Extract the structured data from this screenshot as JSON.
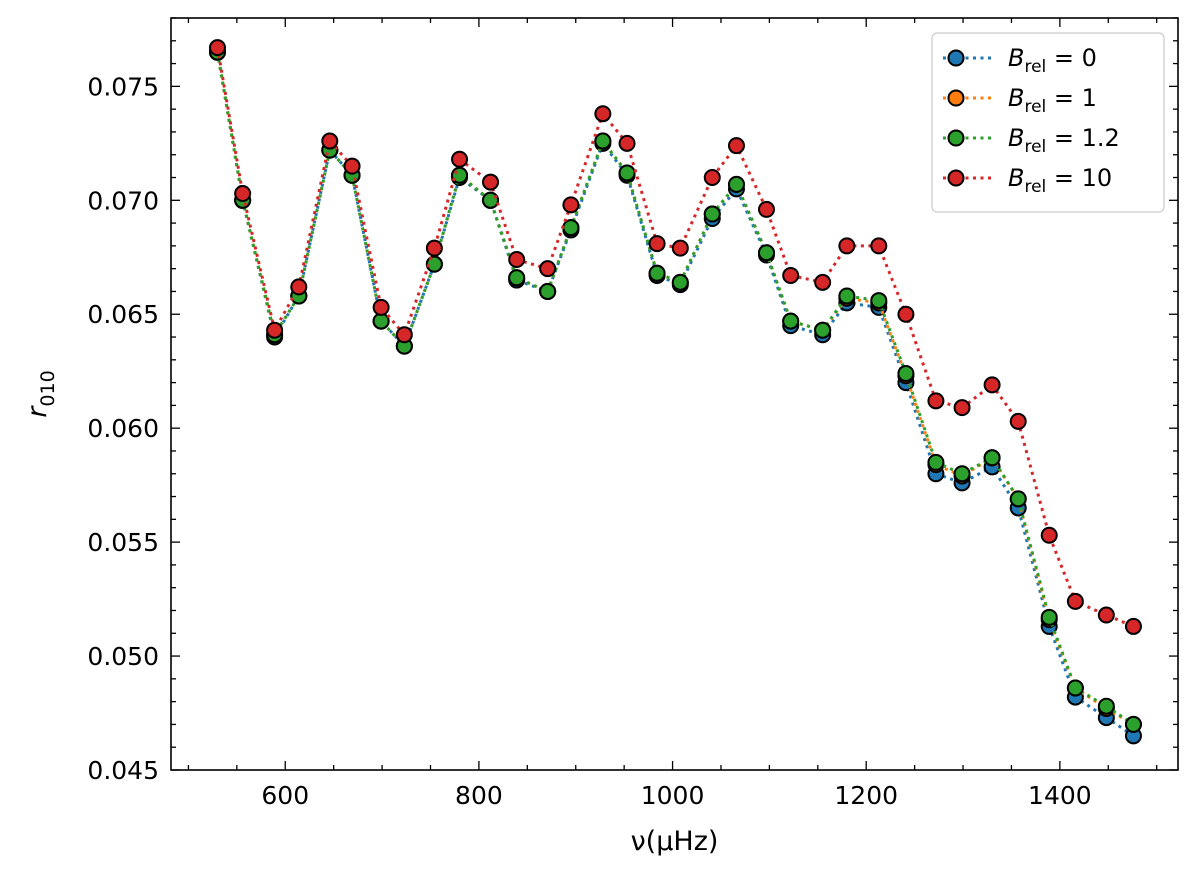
{
  "chart_data": {
    "type": "line",
    "xlabel": "ν(μHz)",
    "ylabel": "r010",
    "xlim": [
      482,
      1522
    ],
    "ylim": [
      0.045,
      0.078
    ],
    "x_ticks": [
      600,
      800,
      1000,
      1200,
      1400
    ],
    "x_tick_labels": [
      "600",
      "800",
      "1000",
      "1200",
      "1400"
    ],
    "y_ticks": [
      0.045,
      0.05,
      0.055,
      0.06,
      0.065,
      0.07,
      0.075
    ],
    "y_tick_labels": [
      "0.045",
      "0.050",
      "0.055",
      "0.060",
      "0.065",
      "0.070",
      "0.075"
    ],
    "grid": false,
    "legend_position": "top-right",
    "x": [
      530,
      556,
      589,
      614,
      646,
      669,
      699,
      723,
      754,
      780,
      812,
      839,
      871,
      895,
      928,
      953,
      984,
      1008,
      1041,
      1066,
      1097,
      1122,
      1155,
      1180,
      1213,
      1241,
      1272,
      1299,
      1330,
      1357,
      1389,
      1416,
      1448,
      1476
    ],
    "series": [
      {
        "name": "B_rel = 0",
        "legend_prefix": "B",
        "legend_sub": "rel",
        "legend_value": "= 0",
        "color": "#1f77b4",
        "values": [
          0.0765,
          0.07,
          0.064,
          0.0658,
          0.0722,
          0.0711,
          0.0647,
          0.0636,
          0.0672,
          0.071,
          0.07,
          0.0665,
          0.066,
          0.0687,
          0.0725,
          0.0711,
          0.0667,
          0.0663,
          0.0692,
          0.0705,
          0.0676,
          0.0645,
          0.0641,
          0.0655,
          0.0653,
          0.062,
          0.058,
          0.0576,
          0.0583,
          0.0565,
          0.0513,
          0.0482,
          0.0473,
          0.0465
        ]
      },
      {
        "name": "B_rel = 1",
        "legend_prefix": "B",
        "legend_sub": "rel",
        "legend_value": "= 1",
        "color": "#ff7f0e",
        "values": [
          0.0765,
          0.07,
          0.0641,
          0.0658,
          0.0722,
          0.0711,
          0.0647,
          0.0636,
          0.0672,
          0.0711,
          0.07,
          0.0666,
          0.066,
          0.0688,
          0.0726,
          0.0712,
          0.0668,
          0.0664,
          0.0694,
          0.0707,
          0.0677,
          0.0647,
          0.0643,
          0.0657,
          0.0655,
          0.0623,
          0.0584,
          0.0579,
          0.0587,
          0.0569,
          0.0516,
          0.0486,
          0.0477,
          0.047
        ]
      },
      {
        "name": "B_rel = 1.2",
        "legend_prefix": "B",
        "legend_sub": "rel",
        "legend_value": "= 1.2",
        "color": "#2ca02c",
        "values": [
          0.0765,
          0.07,
          0.0641,
          0.0658,
          0.0722,
          0.0711,
          0.0647,
          0.0636,
          0.0672,
          0.0711,
          0.07,
          0.0666,
          0.066,
          0.0688,
          0.0726,
          0.0712,
          0.0668,
          0.0664,
          0.0694,
          0.0707,
          0.0677,
          0.0647,
          0.0643,
          0.0658,
          0.0656,
          0.0624,
          0.0585,
          0.058,
          0.0587,
          0.0569,
          0.0517,
          0.0486,
          0.0478,
          0.047
        ]
      },
      {
        "name": "B_rel = 10",
        "legend_prefix": "B",
        "legend_sub": "rel",
        "legend_value": "= 10",
        "color": "#d62728",
        "values": [
          0.0767,
          0.0703,
          0.0643,
          0.0662,
          0.0726,
          0.0715,
          0.0653,
          0.0641,
          0.0679,
          0.0718,
          0.0708,
          0.0674,
          0.067,
          0.0698,
          0.0738,
          0.0725,
          0.0681,
          0.0679,
          0.071,
          0.0724,
          0.0696,
          0.0667,
          0.0664,
          0.068,
          0.068,
          0.065,
          0.0612,
          0.0609,
          0.0619,
          0.0603,
          0.0553,
          0.0524,
          0.0518,
          0.0513
        ]
      }
    ]
  }
}
